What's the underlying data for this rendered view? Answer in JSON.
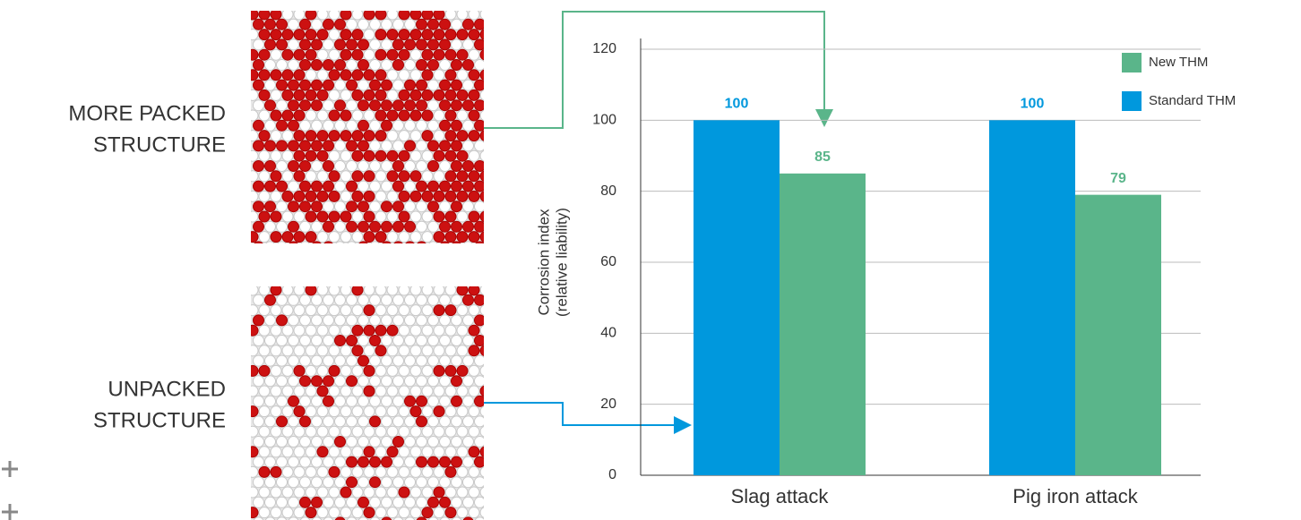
{
  "structures": [
    {
      "label": [
        "MORE PACKED",
        "STRUCTURE"
      ]
    },
    {
      "label": [
        "UNPACKED",
        "STRUCTURE"
      ]
    }
  ],
  "chart_data": {
    "type": "bar",
    "y_label": [
      "Corrosion index",
      "(relative liability)"
    ],
    "categories": [
      "Slag attack",
      "Pig iron attack"
    ],
    "series": [
      {
        "name": "Standard THM",
        "color": "#0098dd",
        "values": [
          100,
          100
        ]
      },
      {
        "name": "New THM",
        "color": "#5ab58a",
        "values": [
          85,
          79
        ]
      }
    ],
    "ylim": [
      0,
      120
    ],
    "yticks": [
      0,
      20,
      40,
      60,
      80,
      100,
      120
    ],
    "grid": true,
    "legend": "top-right",
    "value_labels_shown": true
  }
}
